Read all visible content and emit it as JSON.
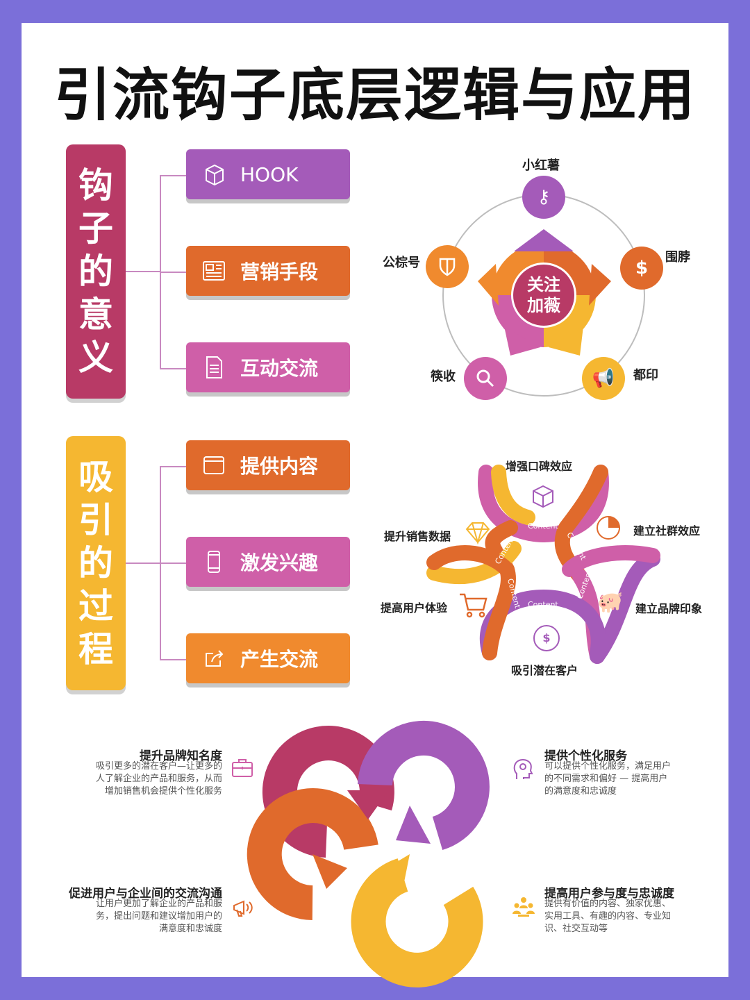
{
  "title": "引流钩子底层逻辑与应用",
  "section1": {
    "bar_chars": [
      "钩",
      "子",
      "的",
      "意",
      "义"
    ],
    "buttons": [
      {
        "label": "HOOK",
        "icon": "cube-icon",
        "color": "#a45bb9"
      },
      {
        "label": "营销手段",
        "icon": "newspaper-icon",
        "color": "#e06a2c"
      },
      {
        "label": "互动交流",
        "icon": "document-icon",
        "color": "#cf5fa8"
      }
    ],
    "bar_color": "#b83a66"
  },
  "section2": {
    "bar_chars": [
      "吸",
      "引",
      "的",
      "过",
      "程"
    ],
    "buttons": [
      {
        "label": "提供内容",
        "icon": "browser-icon",
        "color": "#e06a2c"
      },
      {
        "label": "激发兴趣",
        "icon": "phone-icon",
        "color": "#cf5fa8"
      },
      {
        "label": "产生交流",
        "icon": "share-icon",
        "color": "#f08a2e"
      }
    ],
    "bar_color": "#f5b731"
  },
  "cycle": {
    "center": [
      "关注",
      "加薇"
    ],
    "nodes": [
      {
        "label": "小红薯",
        "icon": "key-icon",
        "color": "#a45bb9"
      },
      {
        "label": "围脖",
        "icon": "money-bag-icon",
        "color": "#e06a2c"
      },
      {
        "label": "都印",
        "icon": "megaphone-icon",
        "color": "#f5b731"
      },
      {
        "label": "筷收",
        "icon": "magnifier-icon",
        "color": "#cf5fa8"
      },
      {
        "label": "公棕号",
        "icon": "shield-icon",
        "color": "#f08a2e"
      }
    ]
  },
  "content_flower": {
    "labels": [
      "增强口碑效应",
      "建立社群效应",
      "建立品牌印象",
      "吸引潜在客户",
      "提高用户体验",
      "提升销售数据"
    ],
    "ribbon_text": "Content"
  },
  "benefits": [
    {
      "title": "提升品牌知名度",
      "text": [
        "吸引更多的潜在客户—让更多的",
        "人了解企业的产品和服务，从而",
        "增加销售机会提供个性化服务"
      ],
      "icon": "briefcase-icon"
    },
    {
      "title": "提供个性化服务",
      "text": [
        "可以提供个性化服务，满足用户",
        "的不同需求和偏好 — 提高用户",
        "的满意度和忠诚度"
      ],
      "icon": "head-gear-icon"
    },
    {
      "title": "促进用户与企业间的交流沟通",
      "text": [
        "让用户更加了解企业的产品和服",
        "务，提出问题和建议增加用户的",
        "满意度和忠诚度"
      ],
      "icon": "megaphone-icon"
    },
    {
      "title": "提高用户参与度与忠诚度",
      "text": [
        "提供有价值的内容、独家优惠、",
        "实用工具、有趣的内容、专业知",
        "识、社交互动等"
      ],
      "icon": "team-icon"
    }
  ]
}
